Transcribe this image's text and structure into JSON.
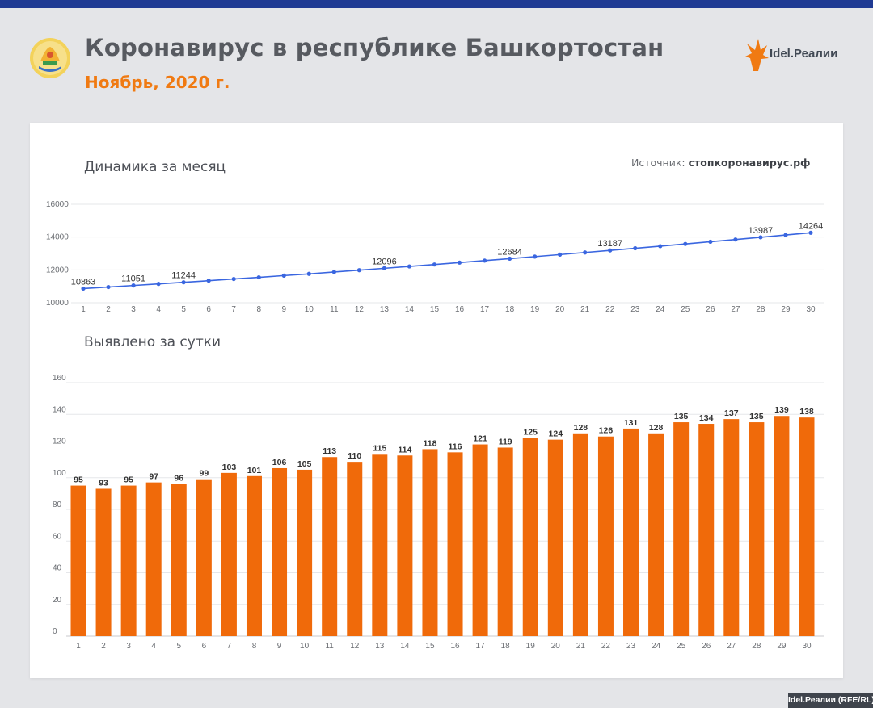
{
  "header": {
    "title": "Коронавирус в республике Башкортостан",
    "subtitle": "Ноябрь, 2020 г.",
    "emblem_icon": "bashkortostan-emblem-icon",
    "brand_icon": "idel-realii-flame-icon",
    "brand_name": "Idel.Реалии"
  },
  "source": {
    "label": "Источник:",
    "value": "стопкоронавирус.рф"
  },
  "footer": {
    "credit": "Idel.Реалии (RFE/RL)"
  },
  "colors": {
    "accent": "#f07a12",
    "bar": "#f06a0a",
    "line": "#3a66e0",
    "top_bar": "#1f3a93"
  },
  "chart_data": [
    {
      "type": "line",
      "title": "Динамика за месяц",
      "x": [
        1,
        2,
        3,
        4,
        5,
        6,
        7,
        8,
        9,
        10,
        11,
        12,
        13,
        14,
        15,
        16,
        17,
        18,
        19,
        20,
        21,
        22,
        23,
        24,
        25,
        26,
        27,
        28,
        29,
        30
      ],
      "values": [
        10863,
        10956,
        11051,
        11148,
        11244,
        11343,
        11446,
        11547,
        11653,
        11758,
        11871,
        11981,
        12096,
        12210,
        12328,
        12444,
        12565,
        12684,
        12809,
        12933,
        13061,
        13187,
        13318,
        13446,
        13581,
        13715,
        13852,
        13987,
        14126,
        14264
      ],
      "labeled_points": [
        1,
        3,
        5,
        13,
        18,
        22,
        28,
        30
      ],
      "ylim": [
        10000,
        16000
      ],
      "yticks": [
        10000,
        12000,
        14000,
        16000
      ],
      "grid": true
    },
    {
      "type": "bar",
      "title": "Выявлено за сутки",
      "categories": [
        "1",
        "2",
        "3",
        "4",
        "5",
        "6",
        "7",
        "8",
        "9",
        "10",
        "11",
        "12",
        "13",
        "14",
        "15",
        "16",
        "17",
        "18",
        "19",
        "20",
        "21",
        "22",
        "23",
        "24",
        "25",
        "26",
        "27",
        "28",
        "29",
        "30"
      ],
      "values": [
        95,
        93,
        95,
        97,
        96,
        99,
        103,
        101,
        106,
        105,
        113,
        110,
        115,
        114,
        118,
        116,
        121,
        119,
        125,
        124,
        128,
        126,
        131,
        128,
        135,
        134,
        137,
        135,
        139,
        138
      ],
      "ylim": [
        0,
        160
      ],
      "yticks": [
        0,
        20,
        40,
        60,
        80,
        100,
        120,
        140,
        160
      ],
      "grid": true
    }
  ]
}
